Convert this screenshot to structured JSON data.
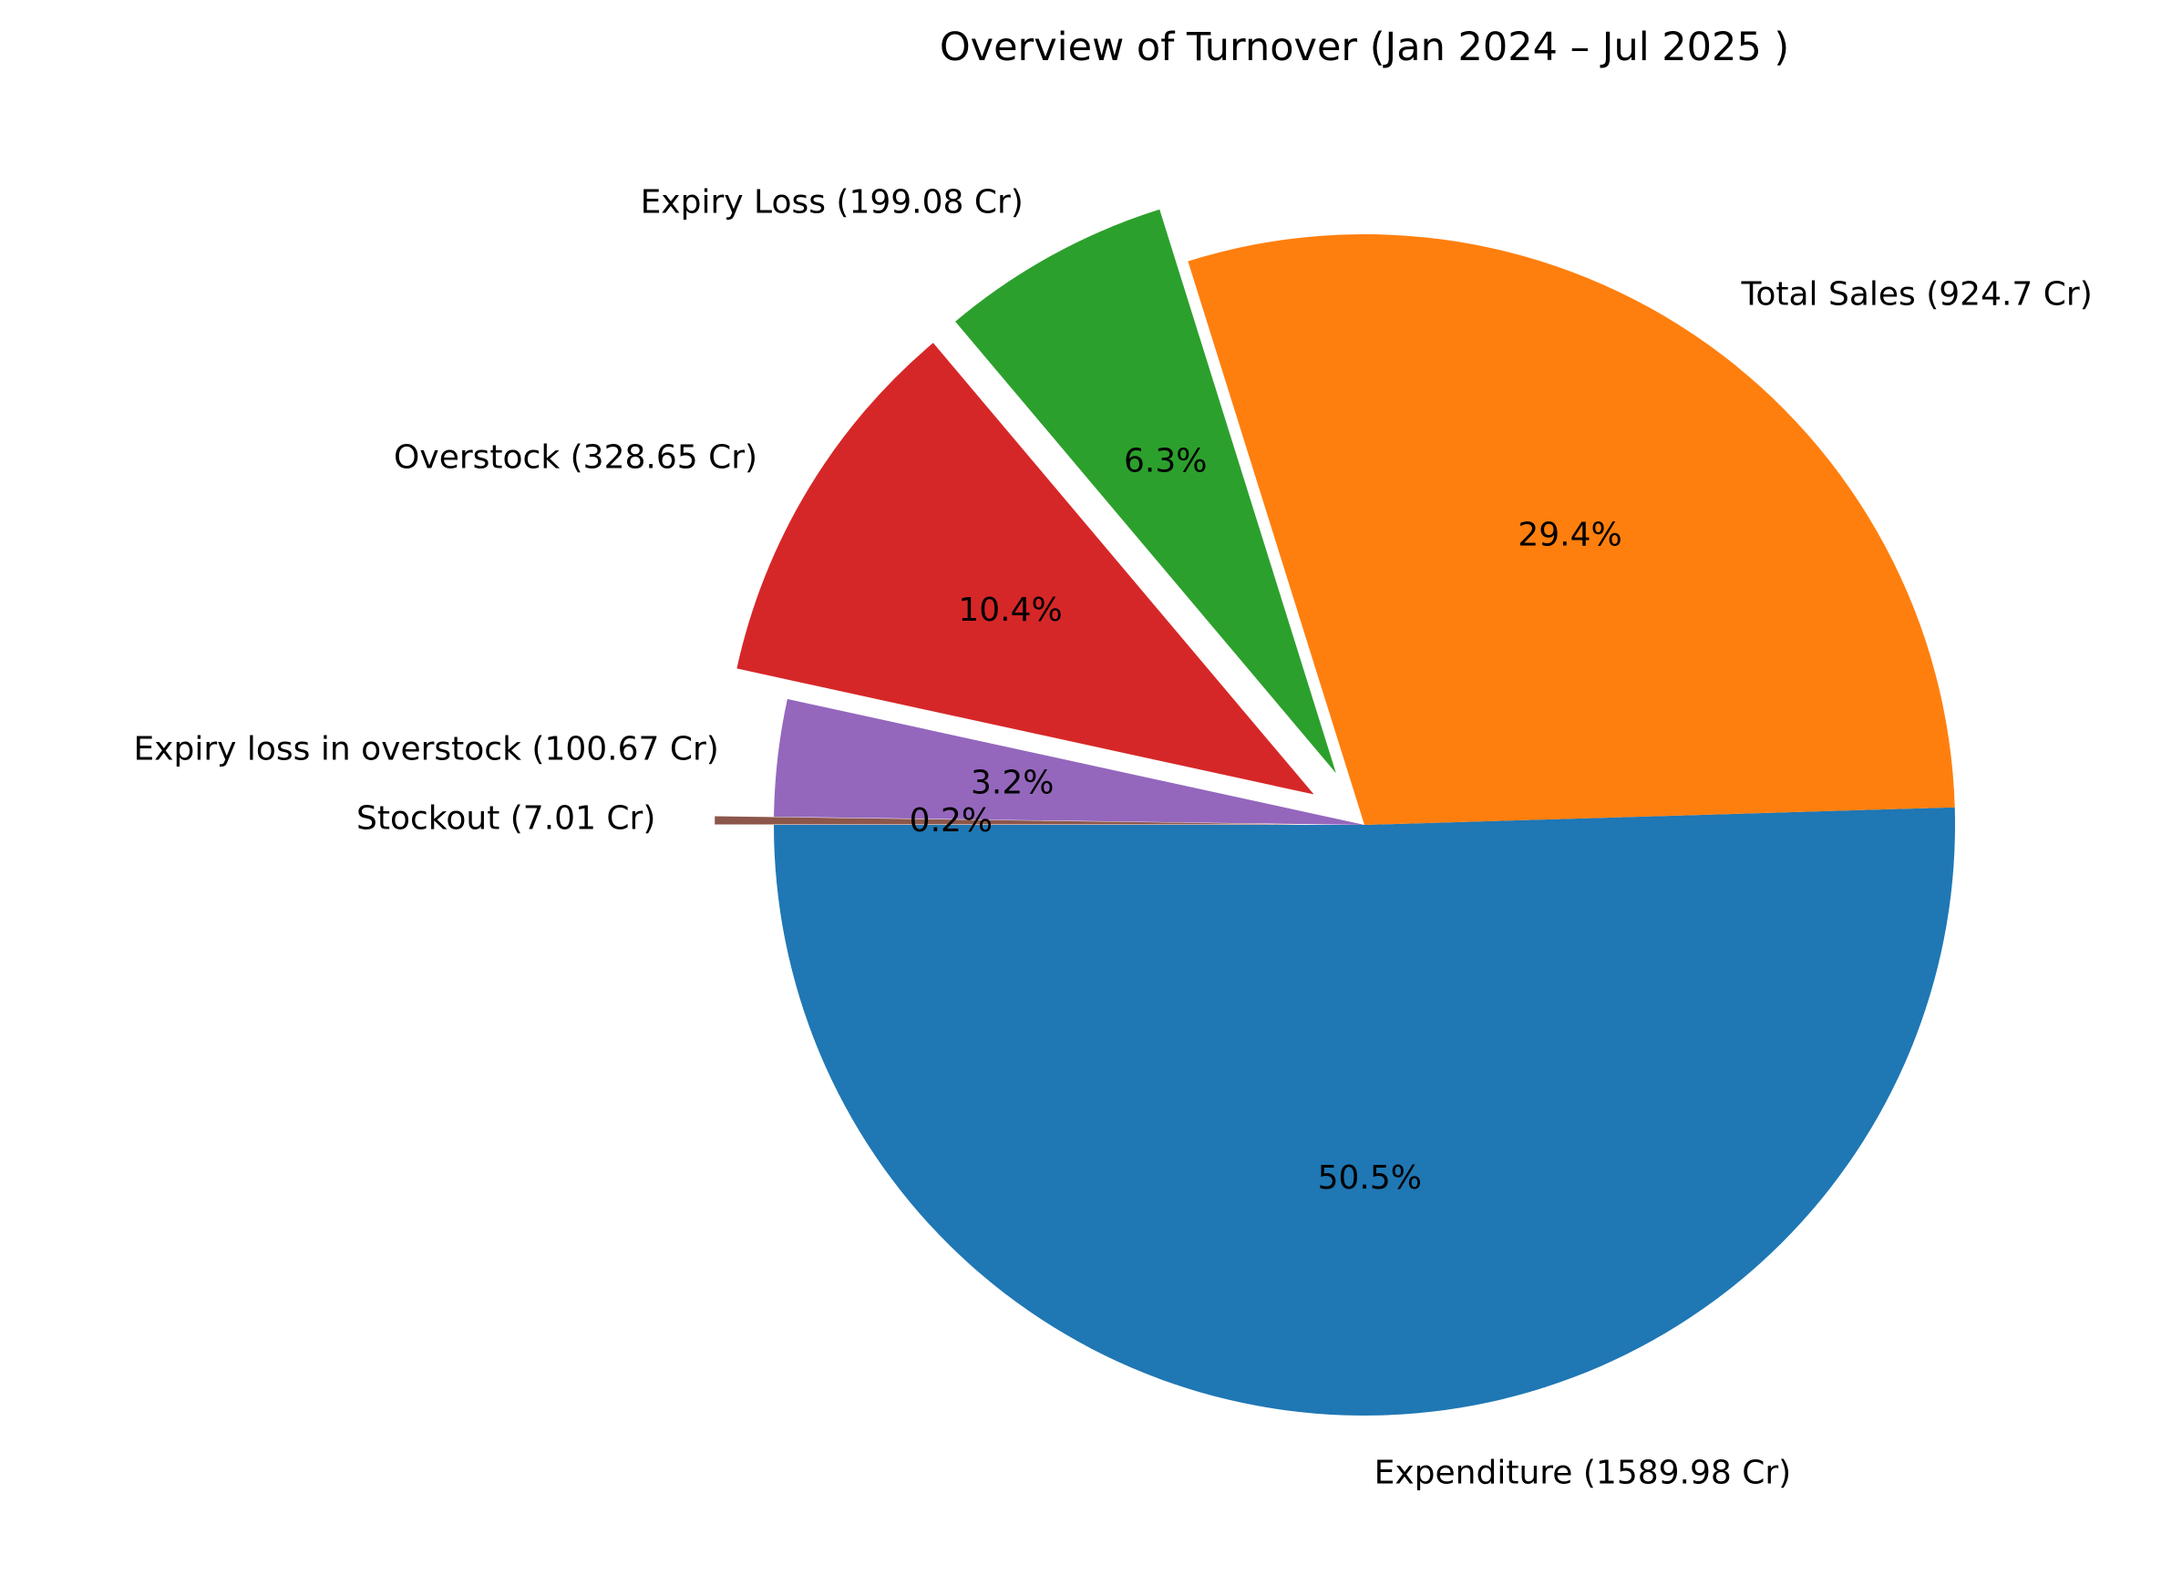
{
  "chart_data": {
    "type": "pie",
    "title": "Overview of Turnover (Jan 2024 – Jul 2025 )",
    "slices": [
      {
        "label": "Expenditure (1589.98 Cr)",
        "value": 1589.98,
        "pct": "50.5%",
        "color": "#1f77b4",
        "explode": 0
      },
      {
        "label": "Total Sales (924.7 Cr)",
        "value": 924.7,
        "pct": "29.4%",
        "color": "#ff7f0e",
        "explode": 0
      },
      {
        "label": "Expiry Loss (199.08 Cr)",
        "value": 199.08,
        "pct": "6.3%",
        "color": "#2ca02c",
        "explode": 0.1
      },
      {
        "label": "Overstock (328.65 Cr)",
        "value": 328.65,
        "pct": "10.4%",
        "color": "#d62728",
        "explode": 0.1
      },
      {
        "label": "Expiry loss in overstock (100.67 Cr)",
        "value": 100.67,
        "pct": "3.2%",
        "color": "#9467bd",
        "explode": 0
      },
      {
        "label": "Stockout (7.01 Cr)",
        "value": 7.01,
        "pct": "0.2%",
        "color": "#8c564b",
        "explode": 0.1
      }
    ]
  }
}
